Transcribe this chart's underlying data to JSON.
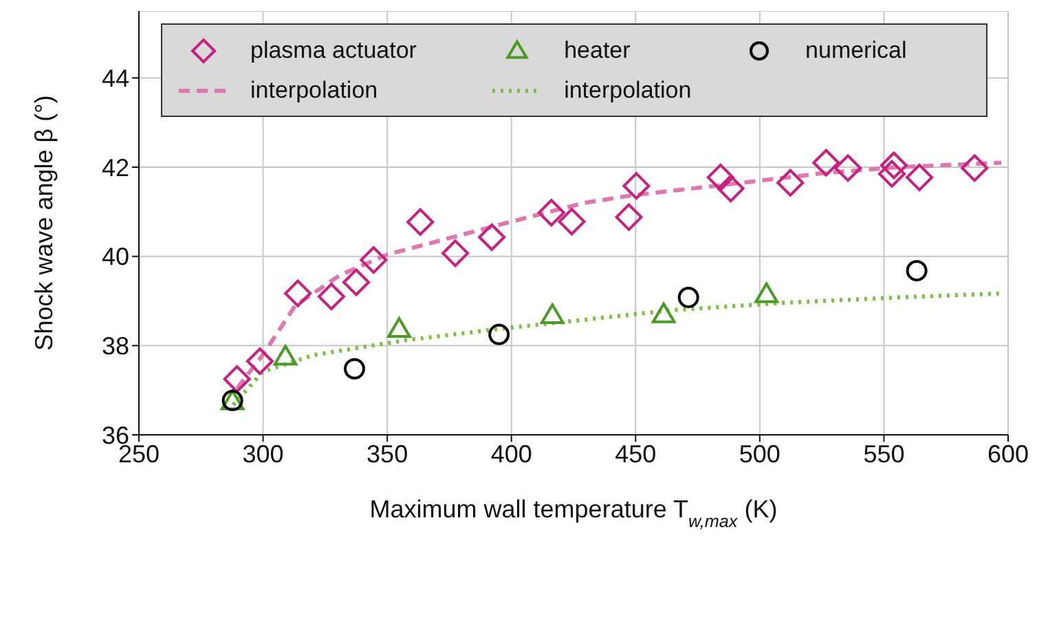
{
  "chart_data": {
    "type": "scatter",
    "xlabel": "Maximum wall temperature T$_{w,max}$ (K)",
    "ylabel": "Shock wave angle β (°)",
    "xlim": [
      250,
      600
    ],
    "xticks": [
      250,
      300,
      350,
      400,
      450,
      500,
      550,
      600
    ],
    "ylim": [
      36,
      45.5
    ],
    "yticks": [
      36,
      38,
      40,
      42,
      44
    ],
    "grid": true,
    "legend": "top",
    "series": [
      {
        "name": "plasma actuator",
        "marker": "diamond",
        "color": "#c8207e",
        "x": [
          289.5,
          298.7,
          314,
          327.5,
          337.5,
          344.5,
          363.3,
          377.4,
          392.1,
          416.1,
          424.3,
          447.3,
          450.3,
          484.2,
          488.3,
          512.3,
          526.7,
          535.5,
          554,
          553.2,
          564.3,
          586.5
        ],
        "values": [
          37.25,
          37.65,
          39.17,
          39.1,
          39.42,
          39.92,
          40.77,
          40.07,
          40.43,
          40.98,
          40.78,
          40.88,
          41.58,
          41.77,
          41.52,
          41.65,
          42.1,
          41.98,
          42.04,
          41.85,
          41.77,
          41.98
        ]
      },
      {
        "name": "heater",
        "marker": "triangle",
        "color": "#4a9a24",
        "x": [
          287.7,
          309,
          354.8,
          416.5,
          461.3,
          502.7
        ],
        "values": [
          36.75,
          37.75,
          38.37,
          38.68,
          38.7,
          39.15
        ]
      },
      {
        "name": "numerical",
        "marker": "circle",
        "color": "#000000",
        "x": [
          287.7,
          336.8,
          395,
          471.3,
          563.2
        ],
        "values": [
          36.77,
          37.48,
          38.25,
          39.08,
          39.68
        ]
      },
      {
        "name": "interpolation",
        "type": "line",
        "marker": "none",
        "line_style": "dashed",
        "color": "#e078b0",
        "x": [
          289.5,
          300,
          313,
          331,
          350,
          375.7,
          398,
          429.4,
          448.8,
          482,
          526.4,
          555.8,
          597.3
        ],
        "values": [
          37.04,
          37.8,
          38.9,
          39.58,
          40.04,
          40.42,
          40.75,
          41.2,
          41.37,
          41.58,
          41.87,
          42.0,
          42.1
        ]
      },
      {
        "name": "interpolation",
        "type": "line",
        "marker": "none",
        "line_style": "dotted",
        "color": "#7cc040",
        "x": [
          288,
          300,
          320.5,
          357.4,
          394.3,
          429.4,
          463.6,
          509.7,
          555.7,
          597.3
        ],
        "values": [
          36.67,
          37.42,
          37.79,
          38.12,
          38.37,
          38.58,
          38.79,
          38.96,
          39.08,
          39.17
        ]
      }
    ]
  }
}
